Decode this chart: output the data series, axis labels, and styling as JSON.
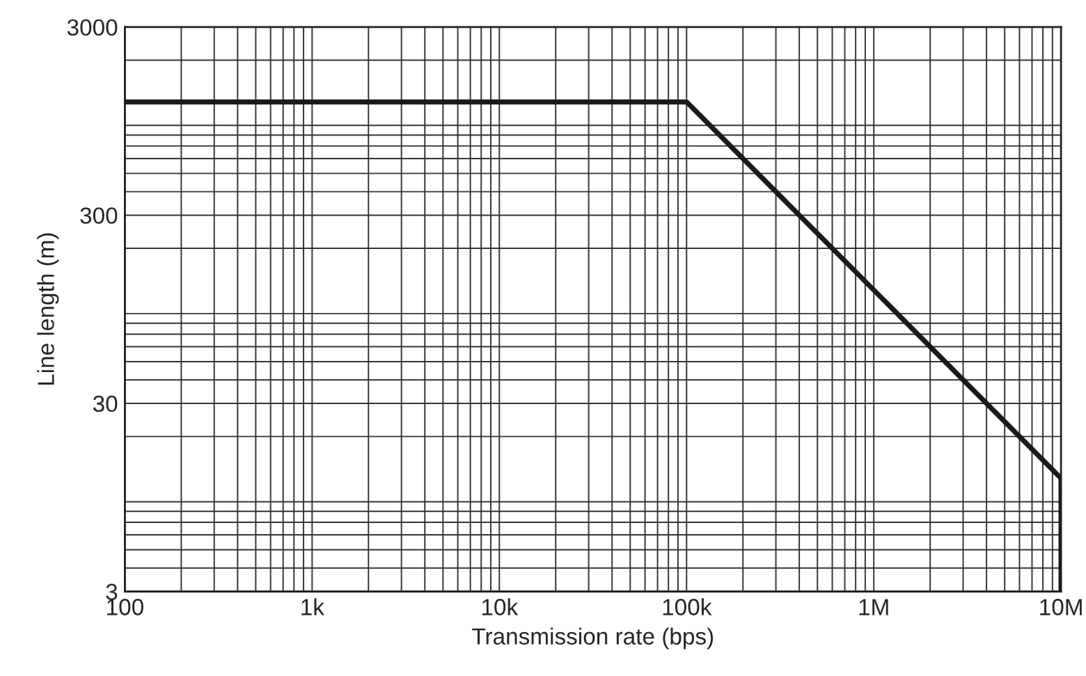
{
  "chart_data": {
    "type": "line",
    "xlabel": "Transmission rate (bps)",
    "ylabel": "Line length (m)",
    "log": "xy",
    "grid": true,
    "legend": false,
    "marker": "none",
    "line_style": "solid",
    "x": [
      100,
      100000,
      10000000,
      10000000
    ],
    "series": [
      {
        "color": "#1a1a1a",
        "values": [
          1200,
          1200,
          12,
          3
        ]
      }
    ],
    "xlim": [
      100,
      10000000
    ],
    "ylim": [
      3,
      3000
    ],
    "xticks": [
      100,
      {
        "value": 1000,
        "label": "1k"
      },
      {
        "value": 10000,
        "label": "10k"
      },
      {
        "value": 100000,
        "label": "100k"
      },
      {
        "value": 1000000,
        "label": "1M"
      },
      {
        "value": 10000000,
        "label": "10M"
      }
    ],
    "yticks": [
      3,
      30,
      300,
      3000
    ]
  }
}
